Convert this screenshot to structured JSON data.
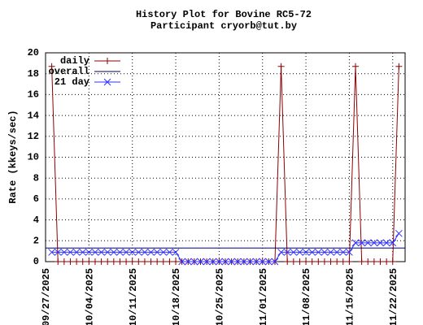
{
  "chart_data": {
    "type": "line",
    "title": "History Plot for Bovine RC5-72",
    "subtitle": "Participant cryorb@tut.by",
    "y_label": "Rate (kkeys/sec)",
    "x": [
      "09/28/2025",
      "09/29/2025",
      "09/30/2025",
      "10/01/2025",
      "10/02/2025",
      "10/03/2025",
      "10/04/2025",
      "10/05/2025",
      "10/06/2025",
      "10/07/2025",
      "10/08/2025",
      "10/09/2025",
      "10/10/2025",
      "10/11/2025",
      "10/12/2025",
      "10/13/2025",
      "10/14/2025",
      "10/15/2025",
      "10/16/2025",
      "10/17/2025",
      "10/18/2025",
      "10/19/2025",
      "10/20/2025",
      "10/21/2025",
      "10/22/2025",
      "10/23/2025",
      "10/24/2025",
      "10/25/2025",
      "10/26/2025",
      "10/27/2025",
      "10/28/2025",
      "10/29/2025",
      "10/30/2025",
      "10/31/2025",
      "11/01/2025",
      "11/02/2025",
      "11/03/2025",
      "11/04/2025",
      "11/05/2025",
      "11/06/2025",
      "11/07/2025",
      "11/08/2025",
      "11/09/2025",
      "11/10/2025",
      "11/11/2025",
      "11/12/2025",
      "11/13/2025",
      "11/14/2025",
      "11/15/2025",
      "11/16/2025",
      "11/17/2025",
      "11/18/2025",
      "11/19/2025",
      "11/20/2025",
      "11/21/2025",
      "11/22/2025",
      "11/23/2025"
    ],
    "series": [
      {
        "name": "daily",
        "color": "#8b0000",
        "marker": "plus",
        "values": [
          18.7,
          0,
          0,
          0,
          0,
          0,
          0,
          0,
          0,
          0,
          0,
          0,
          0,
          0,
          0,
          0,
          0,
          0,
          0,
          0,
          0,
          0,
          0,
          0,
          0,
          0,
          0,
          0,
          0,
          0,
          0,
          0,
          0,
          0,
          0,
          0,
          0,
          18.7,
          0,
          0,
          0,
          0,
          0,
          0,
          0,
          0,
          0,
          0,
          0,
          18.7,
          0,
          0,
          0,
          0,
          0,
          0,
          18.7
        ]
      },
      {
        "name": "overall",
        "color": "#000060",
        "marker": "none",
        "hline": 1.3
      },
      {
        "name": "21 day",
        "color": "#3030ff",
        "marker": "cross",
        "values": [
          0.9,
          0.9,
          0.9,
          0.9,
          0.9,
          0.9,
          0.9,
          0.9,
          0.9,
          0.9,
          0.9,
          0.9,
          0.9,
          0.9,
          0.9,
          0.9,
          0.9,
          0.9,
          0.9,
          0.9,
          0.9,
          0,
          0,
          0,
          0,
          0,
          0,
          0,
          0,
          0,
          0,
          0,
          0,
          0,
          0,
          0,
          0,
          0.9,
          0.9,
          0.9,
          0.9,
          0.9,
          0.9,
          0.9,
          0.9,
          0.9,
          0.9,
          0.9,
          0.9,
          1.8,
          1.8,
          1.8,
          1.8,
          1.8,
          1.8,
          1.8,
          2.7
        ]
      }
    ],
    "xlim": [
      "09/27/2025",
      "11/24/2025"
    ],
    "xticks": [
      "09/27/2025",
      "10/04/2025",
      "10/11/2025",
      "10/18/2025",
      "10/25/2025",
      "11/01/2025",
      "11/08/2025",
      "11/15/2025",
      "11/22/2025"
    ],
    "ylim": [
      0,
      20
    ],
    "yticks": [
      0,
      2,
      4,
      6,
      8,
      10,
      12,
      14,
      16,
      18,
      20
    ],
    "grid": true,
    "legend": "top-left"
  }
}
